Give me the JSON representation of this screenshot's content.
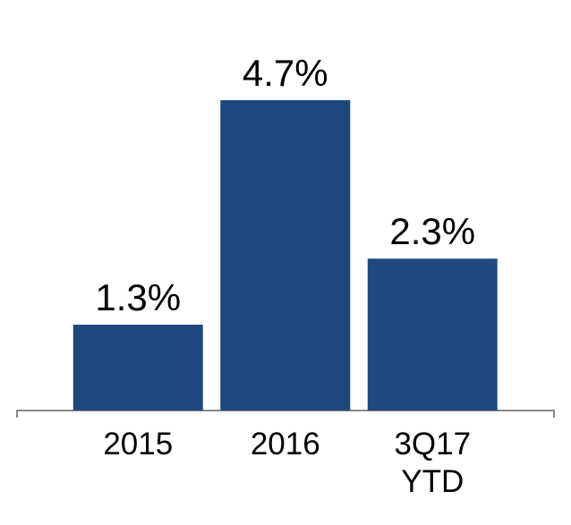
{
  "chart_data": {
    "type": "bar",
    "categories": [
      "2015",
      "2016",
      "3Q17 YTD"
    ],
    "values": [
      1.3,
      4.7,
      2.3
    ],
    "value_labels": [
      "1.3%",
      "4.7%",
      "2.3%"
    ],
    "color": "#1f497d"
  }
}
